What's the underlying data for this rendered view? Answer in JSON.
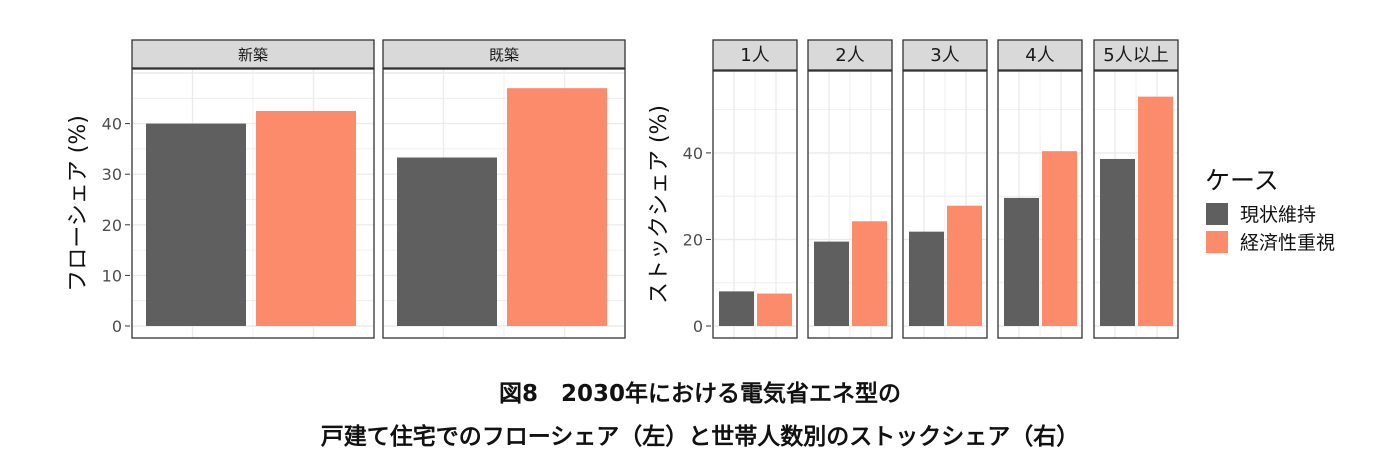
{
  "colors": {
    "status_quo": "#5f5f5f",
    "economy": "#fb8b6b",
    "strip_bg": "#d9d9d9",
    "grid": "#ebebeb"
  },
  "legend": {
    "title": "ケース",
    "items": [
      {
        "label": "現状維持",
        "color": "#5f5f5f"
      },
      {
        "label": "経済性重視",
        "color": "#fb8b6b"
      }
    ]
  },
  "caption": {
    "line1": "図8　2030年における電気省エネ型の",
    "line2": "戸建て住宅でのフローシェア（左）と世帯人数別のストックシェア（右）"
  },
  "chart_data": [
    {
      "type": "bar",
      "ylabel": "フローシェア (%)",
      "ylim": [
        0,
        50
      ],
      "yticks": [
        0,
        10,
        20,
        30,
        40
      ],
      "grid": true,
      "legend_position": "right",
      "facets": [
        {
          "label": "新築",
          "series": [
            {
              "name": "現状維持",
              "value": 40
            },
            {
              "name": "経済性重視",
              "value": 42.5
            }
          ]
        },
        {
          "label": "既築",
          "series": [
            {
              "name": "現状維持",
              "value": 33.3
            },
            {
              "name": "経済性重視",
              "value": 47
            }
          ]
        }
      ]
    },
    {
      "type": "bar",
      "ylabel": "ストックシェア (%)",
      "ylim": [
        0,
        58
      ],
      "yticks": [
        0,
        20,
        40
      ],
      "grid": true,
      "legend_position": "right",
      "facets": [
        {
          "label": "1人",
          "series": [
            {
              "name": "現状維持",
              "value": 8
            },
            {
              "name": "経済性重視",
              "value": 7.5
            }
          ]
        },
        {
          "label": "2人",
          "series": [
            {
              "name": "現状維持",
              "value": 19.5
            },
            {
              "name": "経済性重視",
              "value": 24.2
            }
          ]
        },
        {
          "label": "3人",
          "series": [
            {
              "name": "現状維持",
              "value": 21.8
            },
            {
              "name": "経済性重視",
              "value": 27.8
            }
          ]
        },
        {
          "label": "4人",
          "series": [
            {
              "name": "現状維持",
              "value": 29.6
            },
            {
              "name": "経済性重視",
              "value": 40.4
            }
          ]
        },
        {
          "label": "5人以上",
          "series": [
            {
              "name": "現状維持",
              "value": 38.6
            },
            {
              "name": "経済性重視",
              "value": 53
            }
          ]
        }
      ]
    }
  ]
}
